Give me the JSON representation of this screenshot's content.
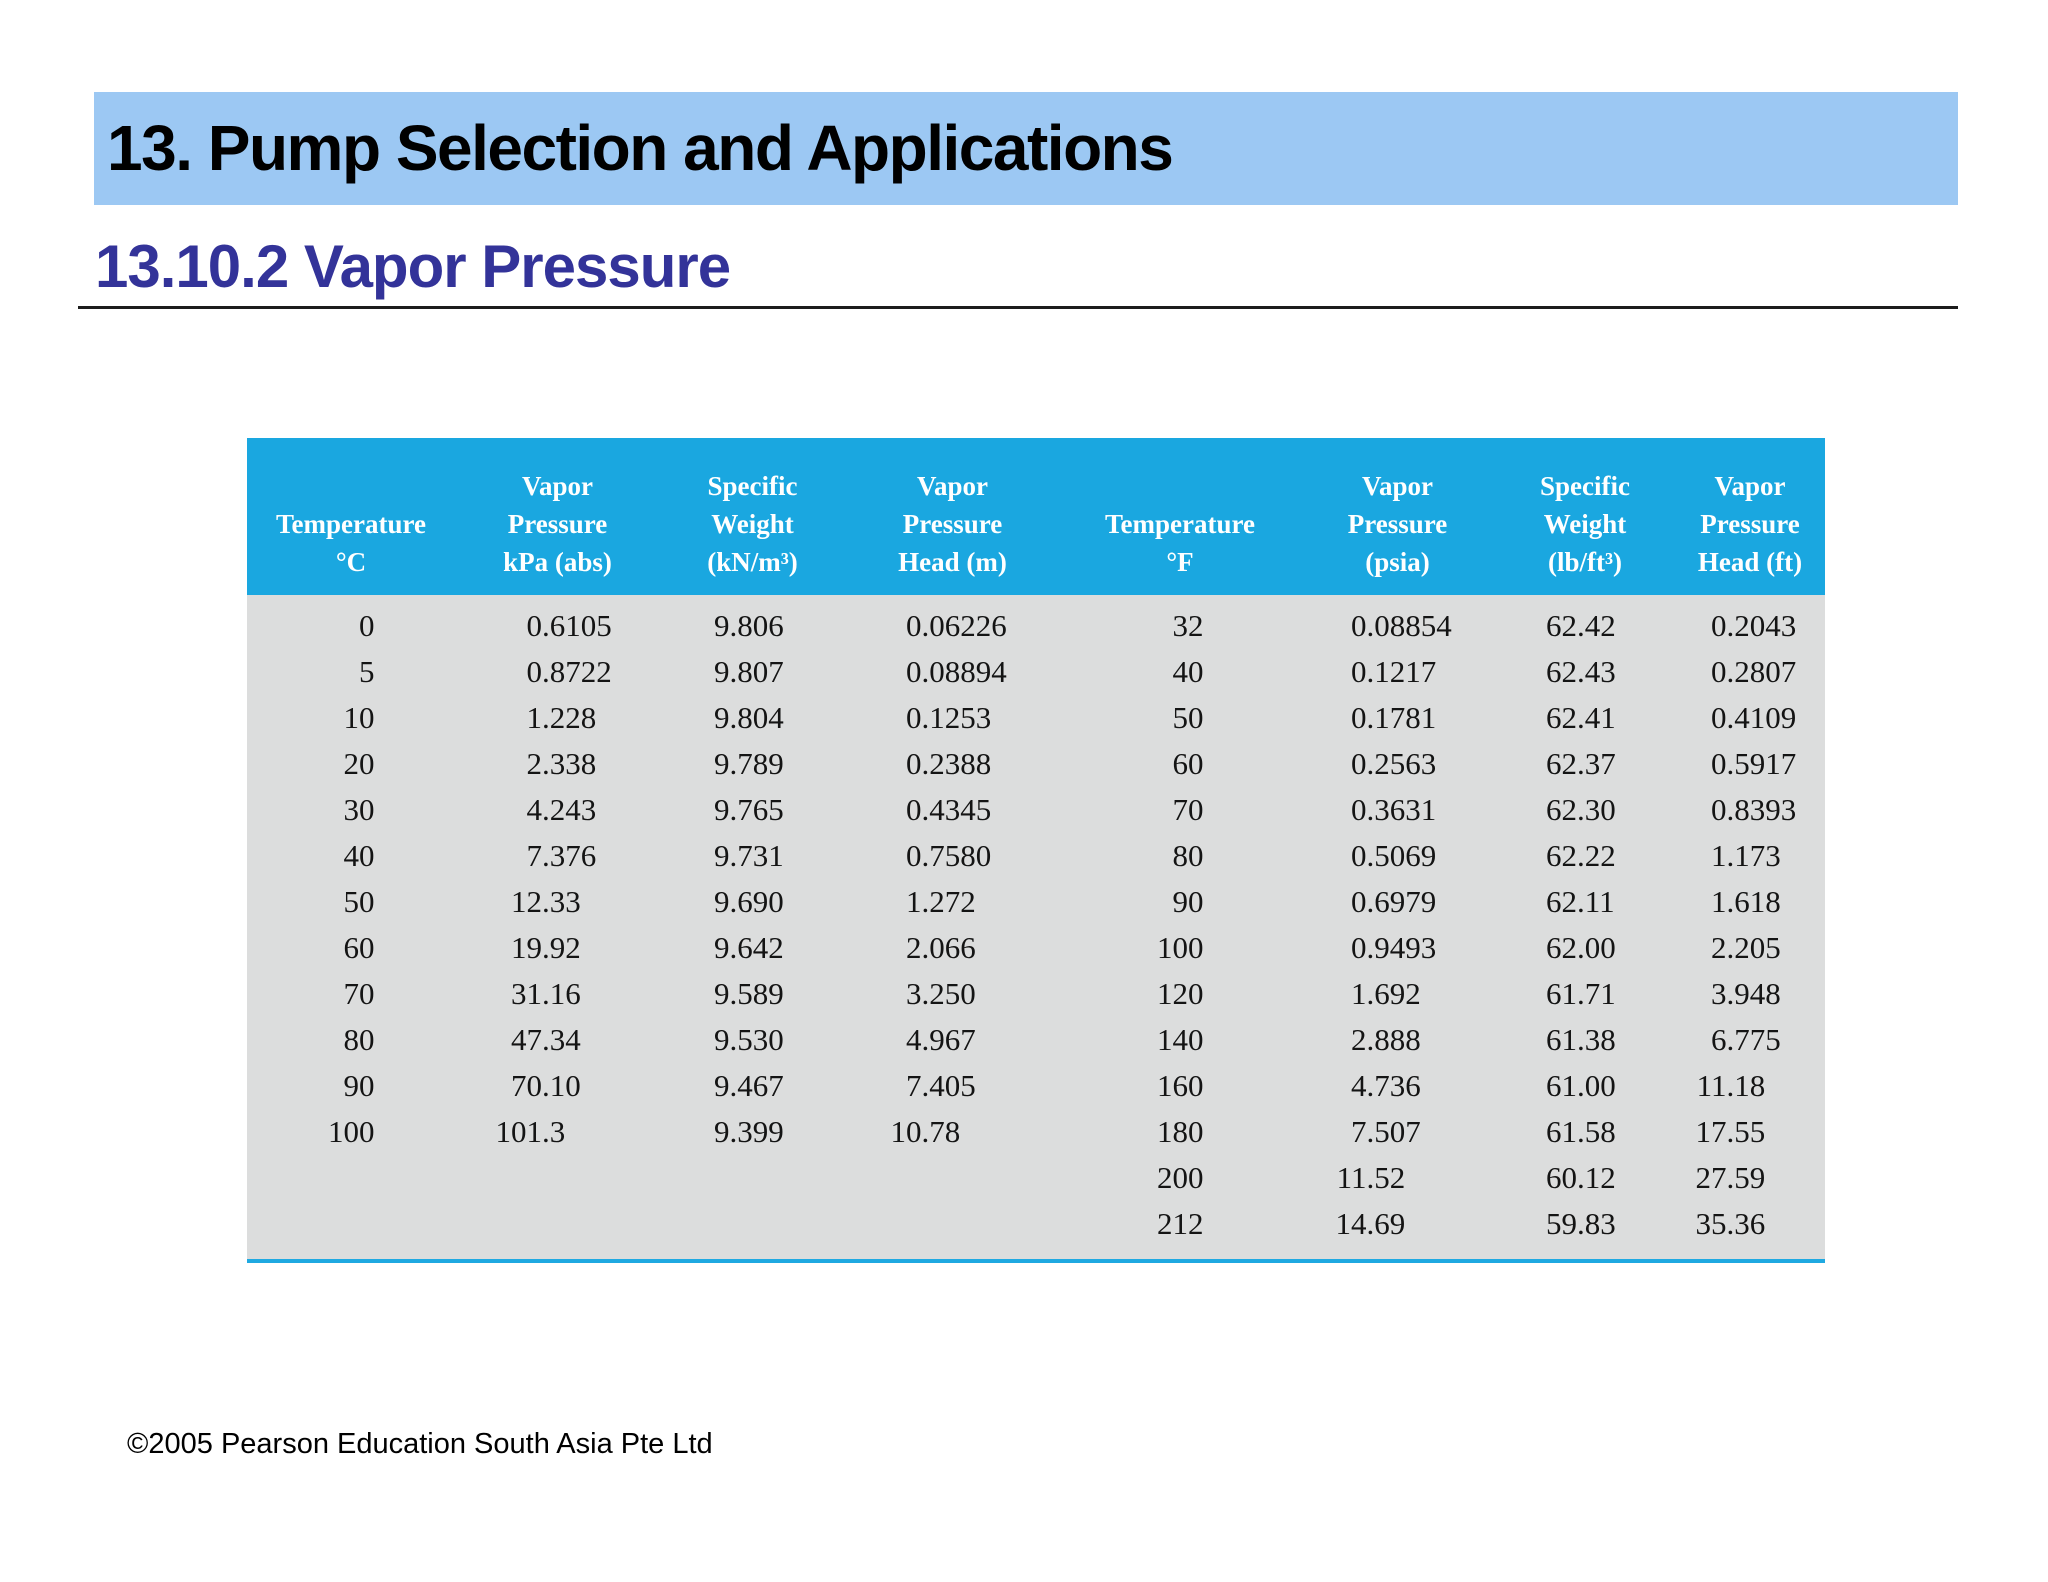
{
  "slide": {
    "title": "13. Pump Selection and Applications",
    "subtitle": "13.10.2 Vapor Pressure",
    "footer": "©2005 Pearson Education South Asia Pte Ltd"
  },
  "colors": {
    "title_bar_bg": "#9cc8f3",
    "subtitle_text": "#333399",
    "table_header_bg": "#1aa7e0",
    "table_header_text": "#ffffff",
    "table_body_bg": "#dcdddd",
    "table_bottom_border": "#1fa9e1"
  },
  "chart_data": {
    "type": "table",
    "title": "Vapor pressure and vapor pressure head of water"
  },
  "table": {
    "header": [
      {
        "lines": [
          "Temperature",
          "°C"
        ]
      },
      {
        "lines": [
          "Vapor",
          "Pressure",
          "kPa (abs)"
        ]
      },
      {
        "lines": [
          "Specific",
          "Weight",
          "(kN/m³)"
        ]
      },
      {
        "lines": [
          "Vapor",
          "Pressure",
          "Head (m)"
        ]
      },
      {
        "lines": [
          "Temperature",
          "°F"
        ]
      },
      {
        "lines": [
          "Vapor",
          "Pressure",
          "(psia)"
        ]
      },
      {
        "lines": [
          "Specific",
          "Weight",
          "(lb/ft³)"
        ]
      },
      {
        "lines": [
          "Vapor",
          "Pressure",
          "Head (ft)"
        ]
      }
    ],
    "rows": [
      [
        "0",
        "0.6105",
        "9.806",
        "0.06226",
        "32",
        "0.08854",
        "62.42",
        "0.2043"
      ],
      [
        "5",
        "0.8722",
        "9.807",
        "0.08894",
        "40",
        "0.1217",
        "62.43",
        "0.2807"
      ],
      [
        "10",
        "1.228",
        "9.804",
        "0.1253",
        "50",
        "0.1781",
        "62.41",
        "0.4109"
      ],
      [
        "20",
        "2.338",
        "9.789",
        "0.2388",
        "60",
        "0.2563",
        "62.37",
        "0.5917"
      ],
      [
        "30",
        "4.243",
        "9.765",
        "0.4345",
        "70",
        "0.3631",
        "62.30",
        "0.8393"
      ],
      [
        "40",
        "7.376",
        "9.731",
        "0.7580",
        "80",
        "0.5069",
        "62.22",
        "1.173"
      ],
      [
        "50",
        "12.33",
        "9.690",
        "1.272",
        "90",
        "0.6979",
        "62.11",
        "1.618"
      ],
      [
        "60",
        "19.92",
        "9.642",
        "2.066",
        "100",
        "0.9493",
        "62.00",
        "2.205"
      ],
      [
        "70",
        "31.16",
        "9.589",
        "3.250",
        "120",
        "1.692",
        "61.71",
        "3.948"
      ],
      [
        "80",
        "47.34",
        "9.530",
        "4.967",
        "140",
        "2.888",
        "61.38",
        "6.775"
      ],
      [
        "90",
        "70.10",
        "9.467",
        "7.405",
        "160",
        "4.736",
        "61.00",
        "11.18"
      ],
      [
        "100",
        "101.3",
        "9.399",
        "10.78",
        "180",
        "7.507",
        "61.58",
        "17.55"
      ],
      [
        "",
        "",
        "",
        "",
        "200",
        "11.52",
        "60.12",
        "27.59"
      ],
      [
        "",
        "",
        "",
        "",
        "212",
        "14.69",
        "59.83",
        "35.36"
      ]
    ]
  }
}
